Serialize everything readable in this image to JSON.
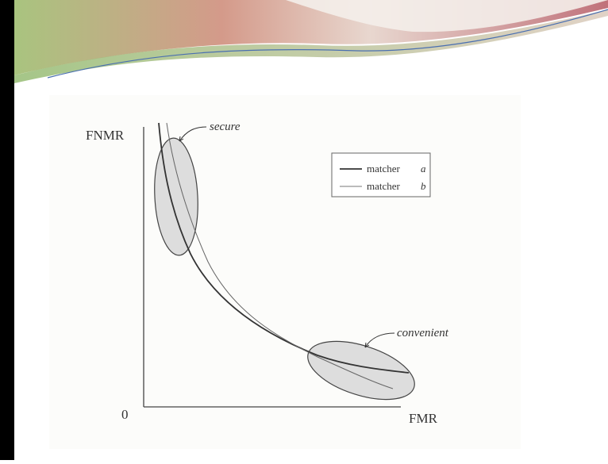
{
  "figure": {
    "axes": {
      "y_label": "FNMR",
      "x_label": "FMR",
      "origin": "0"
    },
    "annotations": {
      "secure": "secure",
      "convenient": "convenient"
    },
    "legend": [
      {
        "label": "matcher",
        "id": "a"
      },
      {
        "label": "matcher",
        "id": "b"
      }
    ]
  }
}
